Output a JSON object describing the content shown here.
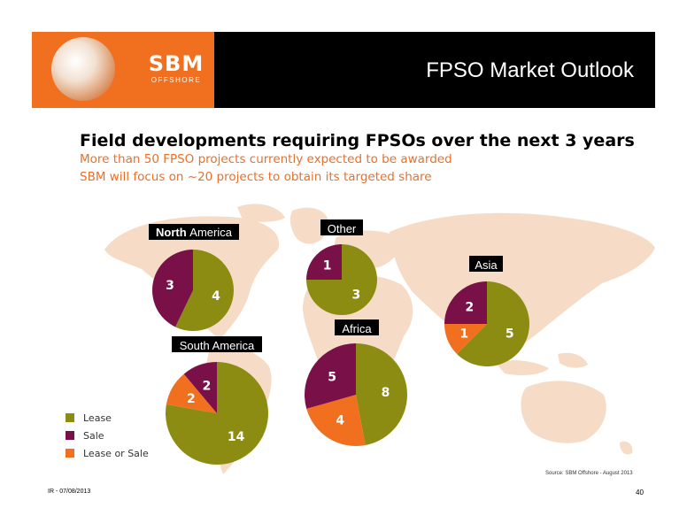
{
  "header": {
    "title": "FPSO Market Outlook",
    "logo_mark": "SBM",
    "logo_sub": "OFFSHORE"
  },
  "headline": "Field developments requiring FPSOs over the next 3 years",
  "subtitle_1": "More than 50 FPSO projects currently expected to be awarded",
  "subtitle_2": "SBM will focus on ~20 projects to obtain its targeted share",
  "colors": {
    "lease": "#8c8c12",
    "sale": "#7a1048",
    "lease_or_sale": "#f07020",
    "map": "#f6dcc6",
    "accent": "#e8702a"
  },
  "legend": [
    "Lease",
    "Sale",
    "Lease or Sale"
  ],
  "chart_data": [
    {
      "type": "pie",
      "title_bold": "North",
      "title": "America",
      "labels": [
        "Lease",
        "Sale"
      ],
      "values": [
        4,
        3
      ]
    },
    {
      "type": "pie",
      "title": "Other",
      "labels": [
        "Lease",
        "Sale"
      ],
      "values": [
        3,
        1
      ]
    },
    {
      "type": "pie",
      "title": "Asia",
      "labels": [
        "Lease",
        "Lease or Sale",
        "Sale"
      ],
      "values": [
        5,
        1,
        2
      ]
    },
    {
      "type": "pie",
      "title": "Africa",
      "labels": [
        "Lease",
        "Lease or Sale",
        "Sale"
      ],
      "values": [
        8,
        4,
        5
      ]
    },
    {
      "type": "pie",
      "title": "South America",
      "labels": [
        "Lease",
        "Lease or Sale",
        "Sale"
      ],
      "values": [
        14,
        2,
        2
      ]
    }
  ],
  "source": "Source: SBM Offshore - August 2013",
  "footer": {
    "left": "IR - 07/08/2013",
    "page": "40"
  }
}
